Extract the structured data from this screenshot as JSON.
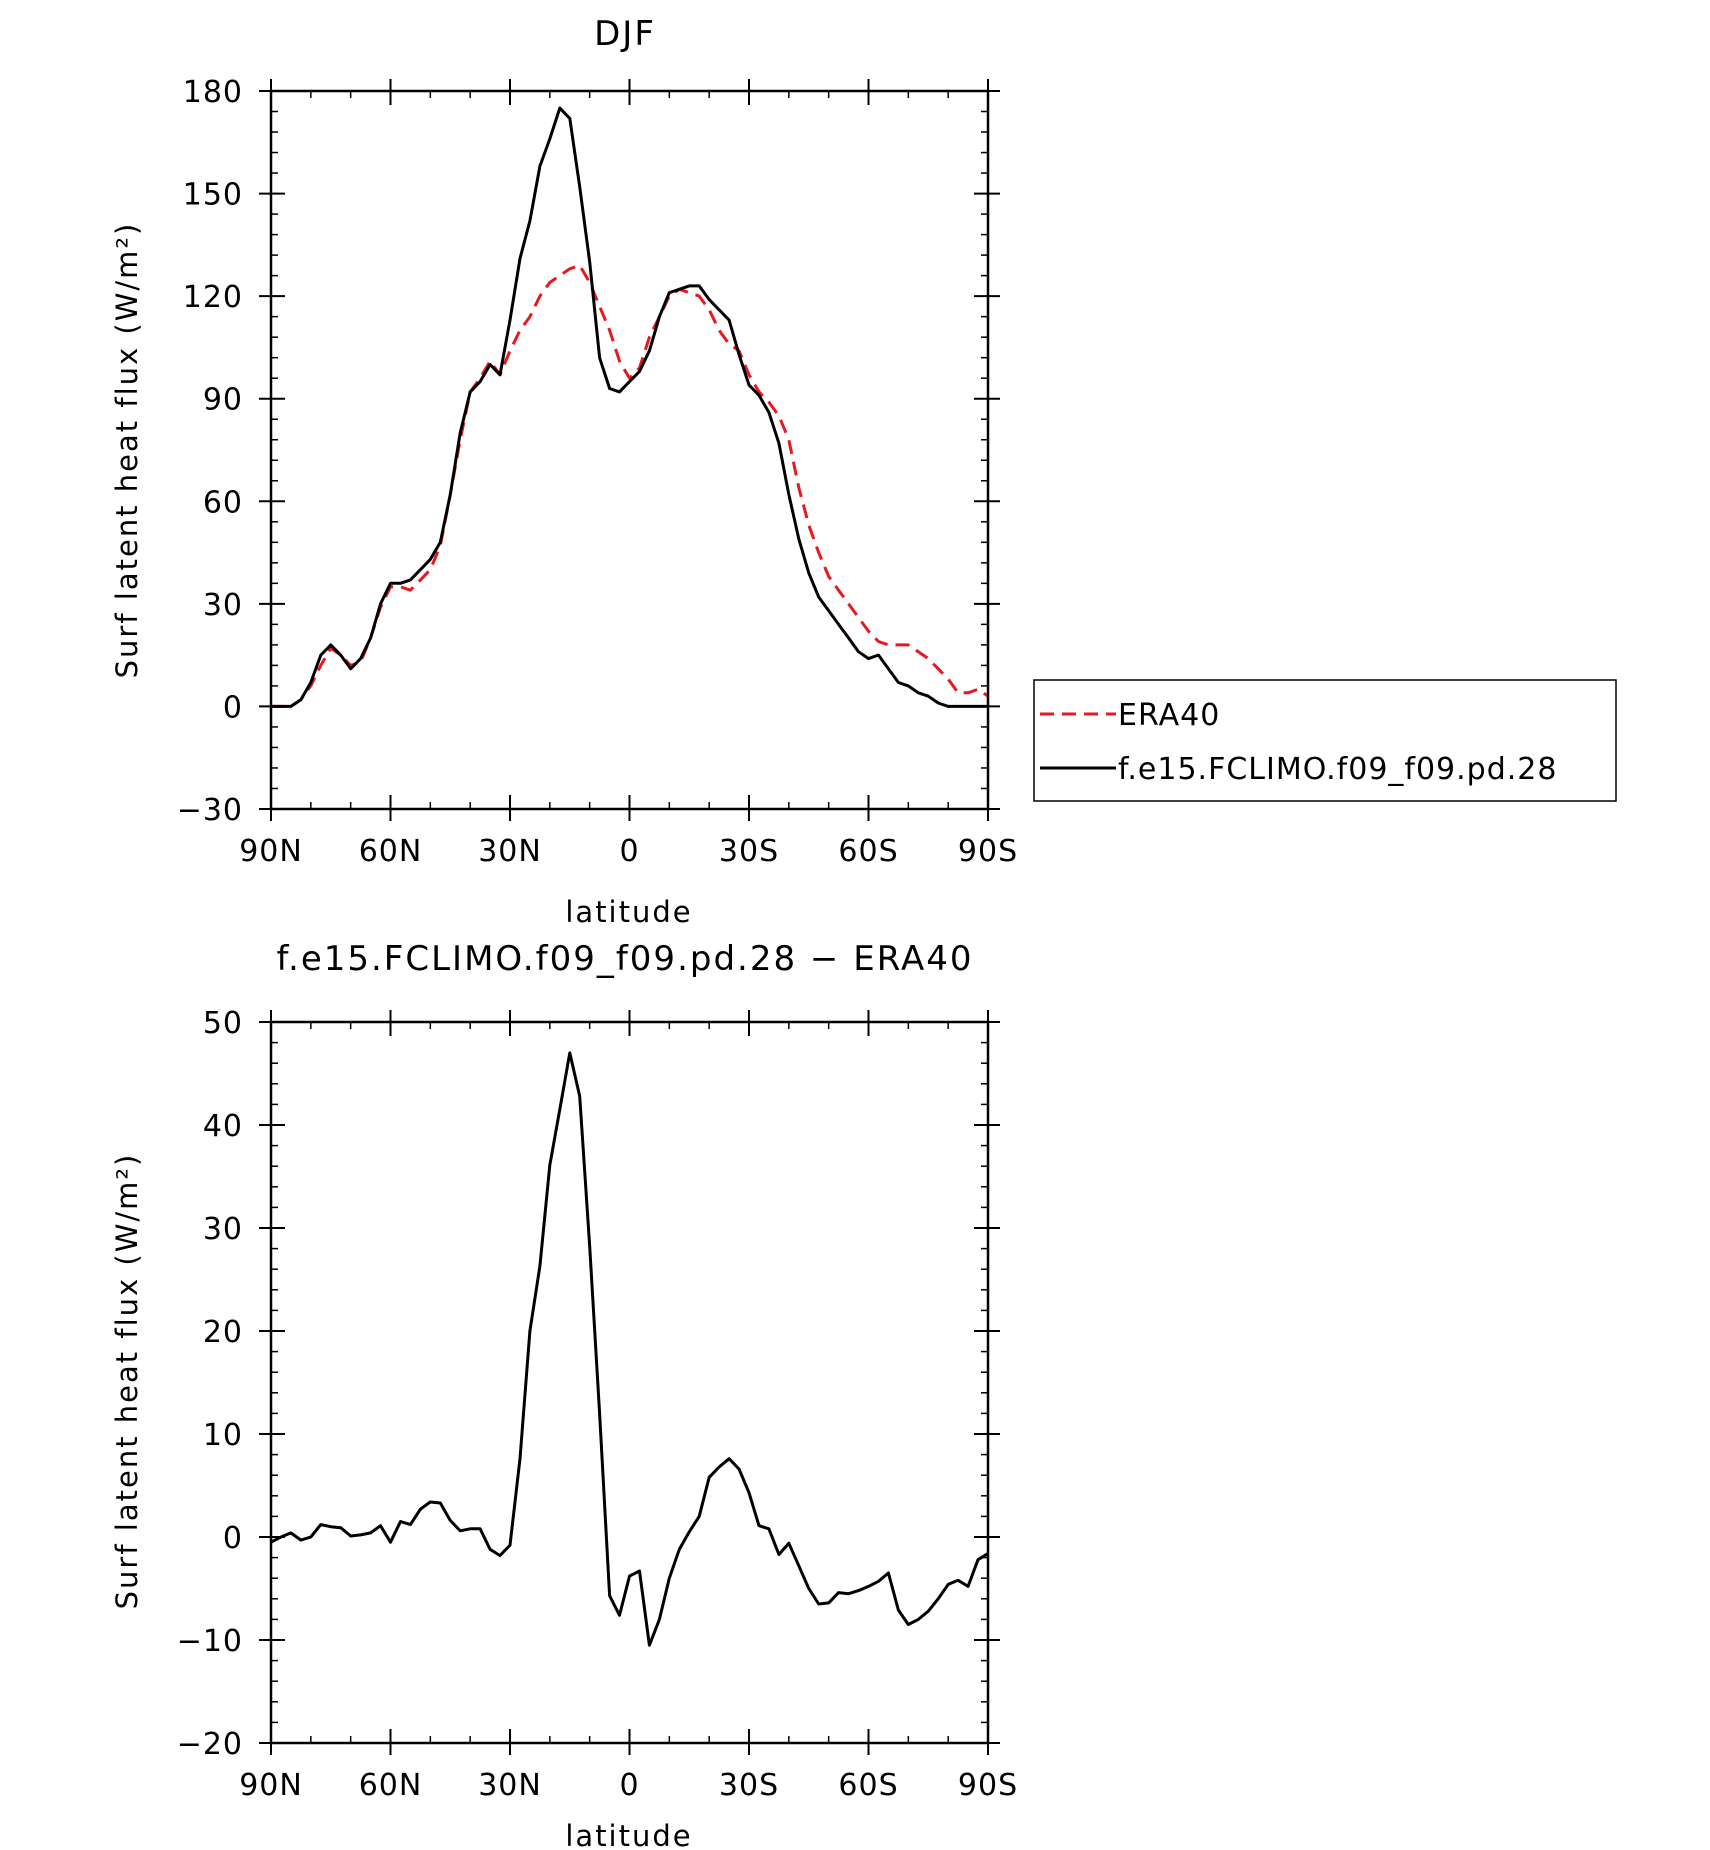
{
  "chart_data": [
    {
      "type": "line",
      "title": "DJF",
      "xlabel": "latitude",
      "ylabel": "Surf latent heat flux (W/m²)",
      "xlim": [
        90,
        -90
      ],
      "ylim": [
        -30,
        180
      ],
      "xticks": [
        90,
        60,
        30,
        0,
        -30,
        -60,
        -90
      ],
      "xtick_labels": [
        "90N",
        "60N",
        "30N",
        "0",
        "30S",
        "60S",
        "90S"
      ],
      "yticks": [
        -30,
        0,
        30,
        60,
        90,
        120,
        150,
        180
      ],
      "ytick_labels": [
        "−30",
        "0",
        "30",
        "60",
        "90",
        "120",
        "150",
        "180"
      ],
      "legend": "outside-right",
      "series": [
        {
          "name": "ERA40",
          "color": "#e8191e",
          "dash": "dashed",
          "x": [
            90,
            87.5,
            85,
            82.5,
            80,
            77.5,
            75,
            72.5,
            70,
            67.5,
            65,
            62.5,
            60,
            57.5,
            55,
            52.5,
            50,
            47.5,
            45,
            42.5,
            40,
            37.5,
            35,
            32.5,
            30,
            27.5,
            25,
            22.5,
            20,
            17.5,
            15,
            12.5,
            10,
            7.5,
            5,
            2.5,
            0,
            -2.5,
            -5,
            -7.5,
            -10,
            -12.5,
            -15,
            -17.5,
            -20,
            -22.5,
            -25,
            -27.5,
            -30,
            -32.5,
            -35,
            -37.5,
            -40,
            -42.5,
            -45,
            -47.5,
            -50,
            -52.5,
            -55,
            -57.5,
            -60,
            -62.5,
            -65,
            -67.5,
            -70,
            -72.5,
            -75,
            -77.5,
            -80,
            -82.5,
            -85,
            -87.5,
            -90
          ],
          "y": [
            0,
            0,
            0,
            2,
            6,
            12,
            17,
            15,
            12,
            13,
            20,
            29,
            35,
            35,
            34,
            37,
            40,
            47,
            62,
            78,
            92,
            96,
            101,
            97,
            104,
            110,
            114,
            120,
            124,
            126,
            128,
            129,
            124,
            117,
            110,
            101,
            96,
            99,
            108,
            114,
            120,
            122,
            121,
            120,
            116,
            110,
            106,
            104,
            97,
            92,
            89,
            85,
            78,
            64,
            53,
            45,
            38,
            34,
            30,
            26,
            22,
            19,
            18,
            18,
            18,
            16,
            14,
            11,
            8,
            4,
            4,
            5,
            3
          ]
        },
        {
          "name": "f.e15.FCLIMO.f09_f09.pd.28",
          "color": "#000000",
          "dash": "solid",
          "x": [
            90,
            87.5,
            85,
            82.5,
            80,
            77.5,
            75,
            72.5,
            70,
            67.5,
            65,
            62.5,
            60,
            57.5,
            55,
            52.5,
            50,
            47.5,
            45,
            42.5,
            40,
            37.5,
            35,
            32.5,
            30,
            27.5,
            25,
            22.5,
            20,
            17.5,
            15,
            12.5,
            10,
            7.5,
            5,
            2.5,
            0,
            -2.5,
            -5,
            -7.5,
            -10,
            -12.5,
            -15,
            -17.5,
            -20,
            -22.5,
            -25,
            -27.5,
            -30,
            -32.5,
            -35,
            -37.5,
            -40,
            -42.5,
            -45,
            -47.5,
            -50,
            -52.5,
            -55,
            -57.5,
            -60,
            -62.5,
            -65,
            -67.5,
            -70,
            -72.5,
            -75,
            -77.5,
            -80,
            -82.5,
            -85,
            -87.5,
            -90
          ],
          "y": [
            0,
            0,
            0,
            2,
            7,
            15,
            18,
            15,
            11,
            14,
            20,
            30,
            36,
            36,
            37,
            40,
            43,
            48,
            62,
            80,
            92,
            95,
            100,
            97,
            113,
            131,
            142,
            158,
            166,
            175,
            172,
            152,
            130,
            102,
            93,
            92,
            95,
            98,
            104,
            114,
            121,
            122,
            123,
            123,
            119,
            116,
            113,
            103,
            94,
            91,
            86,
            77,
            62,
            49,
            39,
            32,
            28,
            24,
            20,
            16,
            14,
            15,
            11,
            7,
            6,
            4,
            3,
            1,
            0,
            0,
            0,
            0,
            0
          ]
        }
      ]
    },
    {
      "type": "line",
      "title": "f.e15.FCLIMO.f09_f09.pd.28 − ERA40",
      "xlabel": "latitude",
      "ylabel": "Surf latent heat flux (W/m²)",
      "xlim": [
        90,
        -90
      ],
      "ylim": [
        -20,
        50
      ],
      "xticks": [
        90,
        60,
        30,
        0,
        -30,
        -60,
        -90
      ],
      "xtick_labels": [
        "90N",
        "60N",
        "30N",
        "0",
        "30S",
        "60S",
        "90S"
      ],
      "yticks": [
        -20,
        -10,
        0,
        10,
        20,
        30,
        40,
        50
      ],
      "ytick_labels": [
        "−20",
        "−10",
        "0",
        "10",
        "20",
        "30",
        "40",
        "50"
      ],
      "series": [
        {
          "color": "#000000",
          "dash": "solid",
          "x": [
            90,
            87.5,
            85,
            82.5,
            80,
            77.5,
            75,
            72.5,
            70,
            67.5,
            65,
            62.5,
            60,
            57.5,
            55,
            52.5,
            50,
            47.5,
            45,
            42.5,
            40,
            37.5,
            35,
            32.5,
            30,
            27.5,
            25,
            22.5,
            20,
            17.5,
            15,
            12.5,
            10,
            7.5,
            5,
            2.5,
            0,
            -2.5,
            -5,
            -7.5,
            -10,
            -12.5,
            -15,
            -17.5,
            -20,
            -22.5,
            -25,
            -27.5,
            -30,
            -32.5,
            -35,
            -37.5,
            -40,
            -42.5,
            -45,
            -47.5,
            -50,
            -52.5,
            -55,
            -57.5,
            -60,
            -62.5,
            -65,
            -67.5,
            -70,
            -72.5,
            -75,
            -77.5,
            -80,
            -82.5,
            -85,
            -87.5,
            -90
          ],
          "y": [
            -0.5,
            0,
            0.4,
            -0.3,
            0,
            1.2,
            1,
            0.9,
            0.1,
            0.2,
            0.4,
            1.1,
            -0.5,
            1.5,
            1.2,
            2.7,
            3.4,
            3.3,
            1.6,
            0.6,
            0.8,
            0.8,
            -1.2,
            -1.8,
            -0.8,
            7.6,
            20,
            26.3,
            36.1,
            41.5,
            47,
            42.8,
            28.2,
            12,
            -5.7,
            -7.6,
            -3.8,
            -3.3,
            -10.5,
            -8,
            -4,
            -1.2,
            0.5,
            2,
            5.8,
            6.8,
            7.6,
            6.6,
            4.3,
            1.1,
            0.8,
            -1.7,
            -0.6,
            -2.8,
            -5,
            -6.5,
            -6.4,
            -5.4,
            -5.5,
            -5.2,
            -4.8,
            -4.3,
            -3.5,
            -7.1,
            -8.5,
            -8,
            -7.2,
            -6,
            -4.6,
            -4.2,
            -4.8,
            -2.2,
            -1.6
          ]
        }
      ]
    }
  ]
}
